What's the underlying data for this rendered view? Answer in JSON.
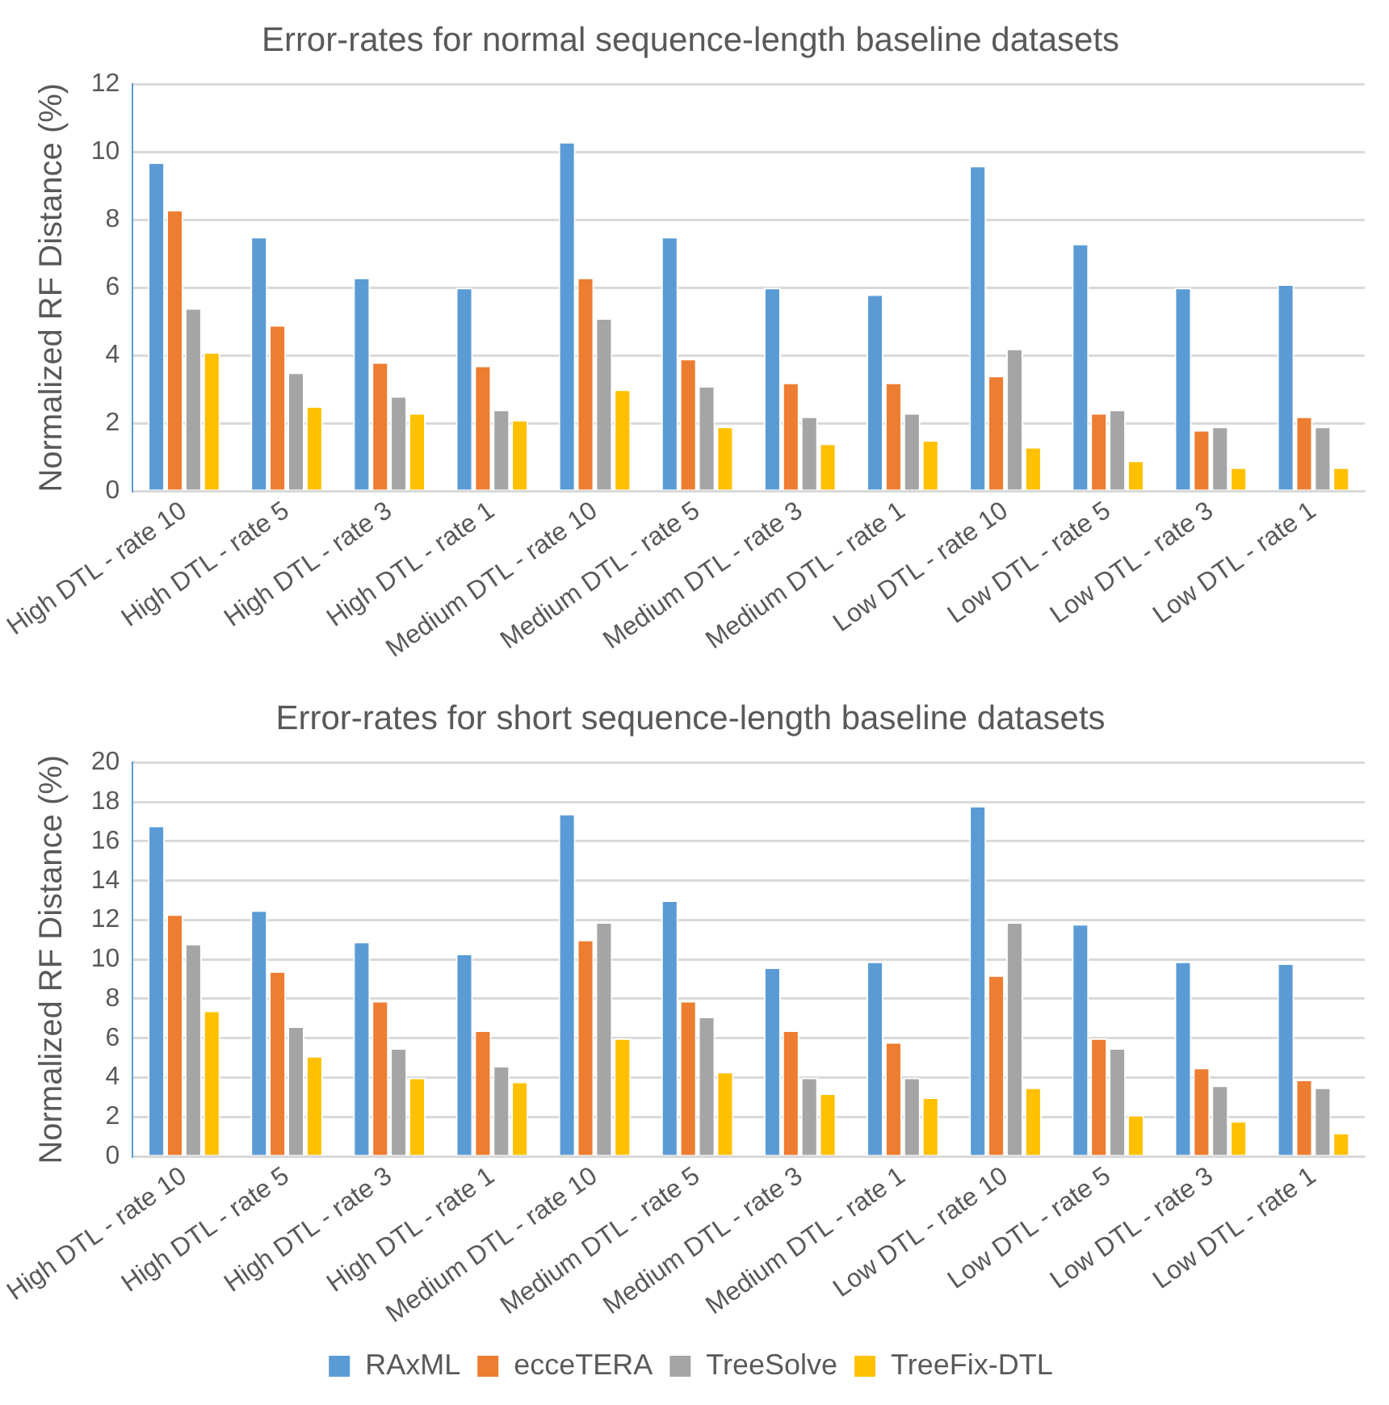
{
  "chart_data": [
    {
      "type": "bar",
      "title": "Error-rates for normal sequence-length baseline datasets",
      "ylabel": "Normalized RF Distance (%)",
      "categories": [
        "High DTL - rate 10",
        "High DTL - rate 5",
        "High DTL - rate 3",
        "High DTL - rate 1",
        "Medium DTL - rate 10",
        "Medium DTL - rate 5",
        "Medium DTL - rate 3",
        "Medium DTL - rate 1",
        "Low DTL - rate 10",
        "Low DTL - rate 5",
        "Low DTL - rate 3",
        "Low DTL - rate 1"
      ],
      "series": [
        {
          "color": "#5b9bd5",
          "values": [
            9.7,
            7.5,
            6.3,
            6.0,
            10.3,
            7.5,
            6.0,
            5.8,
            9.6,
            7.3,
            6.0,
            6.1
          ]
        },
        {
          "color": "#ed7d31",
          "values": [
            8.3,
            4.9,
            3.8,
            3.7,
            6.3,
            3.9,
            3.2,
            3.2,
            3.4,
            2.3,
            1.8,
            2.2
          ]
        },
        {
          "color": "#a5a5a5",
          "values": [
            5.4,
            3.5,
            2.8,
            2.4,
            5.1,
            3.1,
            2.2,
            2.3,
            4.2,
            2.4,
            1.9,
            1.9
          ]
        },
        {
          "color": "#ffc000",
          "values": [
            4.1,
            2.5,
            2.3,
            2.1,
            3.0,
            1.9,
            1.4,
            1.5,
            1.3,
            0.9,
            0.7,
            0.7
          ]
        }
      ],
      "ylim": [
        0,
        12
      ],
      "yticks": [
        0,
        2,
        4,
        6,
        8,
        10,
        12
      ],
      "grid": "y",
      "legend": false
    },
    {
      "type": "bar",
      "title": "Error-rates for short sequence-length baseline datasets",
      "ylabel": "Normalized RF Distance (%)",
      "categories": [
        "High DTL - rate 10",
        "High DTL - rate 5",
        "High DTL - rate 3",
        "High DTL - rate 1",
        "Medium DTL - rate 10",
        "Medium DTL - rate 5",
        "Medium DTL - rate 3",
        "Medium DTL - rate 1",
        "Low DTL - rate 10",
        "Low DTL - rate 5",
        "Low DTL - rate 3",
        "Low DTL - rate 1"
      ],
      "series": [
        {
          "name": "RAxML",
          "color": "#5b9bd5",
          "values": [
            16.8,
            12.5,
            10.9,
            10.3,
            17.4,
            13.0,
            9.6,
            9.9,
            17.8,
            11.8,
            9.9,
            9.8
          ]
        },
        {
          "name": "ecceTERA",
          "color": "#ed7d31",
          "values": [
            12.3,
            9.4,
            7.9,
            6.4,
            11.0,
            7.9,
            6.4,
            5.8,
            9.2,
            6.0,
            4.5,
            3.9
          ]
        },
        {
          "name": "TreeSolve",
          "color": "#a5a5a5",
          "values": [
            10.8,
            6.6,
            5.5,
            4.6,
            11.9,
            7.1,
            4.0,
            4.0,
            11.9,
            5.5,
            3.6,
            3.5
          ]
        },
        {
          "name": "TreeFix-DTL",
          "color": "#ffc000",
          "values": [
            7.4,
            5.1,
            4.0,
            3.8,
            6.0,
            4.3,
            3.2,
            3.0,
            3.5,
            2.1,
            1.8,
            1.2
          ]
        }
      ],
      "ylim": [
        0,
        20
      ],
      "yticks": [
        0,
        2,
        4,
        6,
        8,
        10,
        12,
        14,
        16,
        18,
        20
      ],
      "grid": "y",
      "legend": "bottom"
    }
  ]
}
